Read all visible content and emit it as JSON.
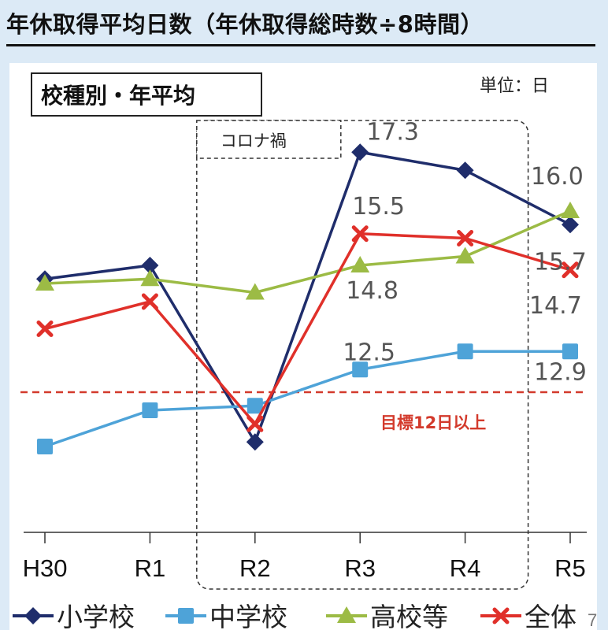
{
  "page_title": "年休取得平均日数（年休取得総時数÷8時間）",
  "chart_data": {
    "type": "line",
    "title": "校種別・年平均",
    "unit": "単位：日",
    "categories": [
      "H30",
      "R1",
      "R2",
      "R3",
      "R4",
      "R5"
    ],
    "series": [
      {
        "name": "小学校",
        "color": "#1f2d6b",
        "marker": "diamond",
        "values": [
          14.5,
          14.8,
          10.9,
          17.3,
          16.9,
          15.7
        ]
      },
      {
        "name": "中学校",
        "color": "#4ea3d8",
        "marker": "square",
        "values": [
          10.8,
          11.6,
          11.7,
          12.5,
          12.9,
          12.9
        ]
      },
      {
        "name": "高校等",
        "color": "#9cbb45",
        "marker": "triangle",
        "values": [
          14.4,
          14.5,
          14.2,
          14.8,
          15.0,
          16.0
        ]
      },
      {
        "name": "全体",
        "color": "#e0302a",
        "marker": "x",
        "values": [
          13.4,
          14.0,
          11.3,
          15.5,
          15.4,
          14.7
        ]
      }
    ],
    "data_labels": [
      {
        "text": "17.3",
        "series": "小学校",
        "category": "R3"
      },
      {
        "text": "15.5",
        "series": "全体",
        "category": "R3"
      },
      {
        "text": "14.8",
        "series": "高校等",
        "category": "R3"
      },
      {
        "text": "12.5",
        "series": "中学校",
        "category": "R3"
      },
      {
        "text": "16.0",
        "series": "高校等",
        "category": "R5"
      },
      {
        "text": "15.7",
        "series": "小学校",
        "category": "R5"
      },
      {
        "text": "14.7",
        "series": "全体",
        "category": "R5"
      },
      {
        "text": "12.9",
        "series": "中学校",
        "category": "R5"
      }
    ],
    "target": {
      "value": 12.0,
      "label": "目標12日以上",
      "color": "#d33a2c"
    },
    "covid_period": {
      "label": "コロナ禍",
      "from": "R2",
      "to": "R4"
    },
    "ylim": [
      10,
      18
    ],
    "legend": "bottom",
    "grid": false
  },
  "page_number": "7"
}
